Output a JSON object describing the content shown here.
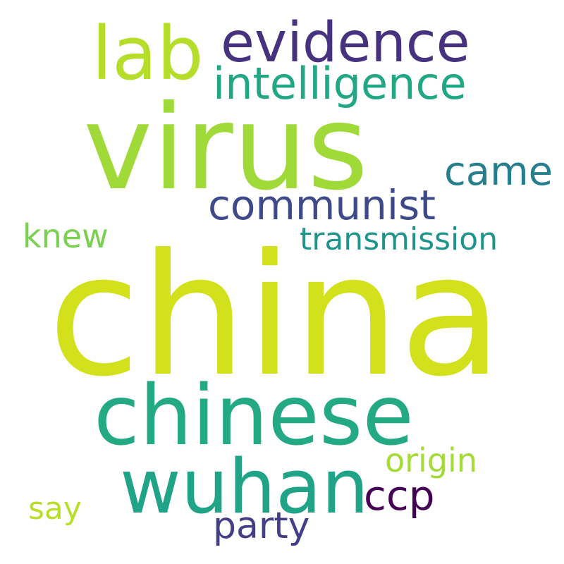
{
  "words": [
    {
      "text": "china",
      "color": "#d2e11b"
    },
    {
      "text": "virus",
      "color": "#a0da39"
    },
    {
      "text": "chinese",
      "color": "#23a983"
    },
    {
      "text": "wuhan",
      "color": "#20a386"
    },
    {
      "text": "evidence",
      "color": "#46327e"
    },
    {
      "text": "lab",
      "color": "#b5de2b"
    },
    {
      "text": "intelligence",
      "color": "#22a785"
    },
    {
      "text": "came",
      "color": "#277f8e"
    },
    {
      "text": "communist",
      "color": "#3e4989"
    },
    {
      "text": "transmission",
      "color": "#1f948c"
    },
    {
      "text": "knew",
      "color": "#7ad151"
    },
    {
      "text": "origin",
      "color": "#a5db36"
    },
    {
      "text": "ccp",
      "color": "#440154"
    },
    {
      "text": "party",
      "color": "#433e85"
    },
    {
      "text": "say",
      "color": "#b8de29"
    }
  ]
}
